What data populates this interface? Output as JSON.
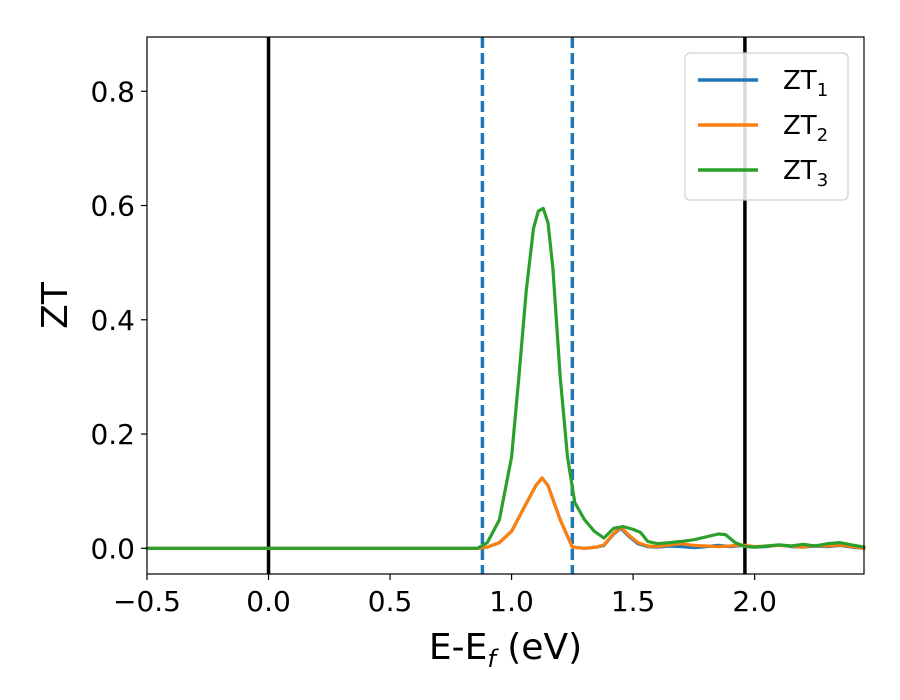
{
  "chart_data": {
    "type": "line",
    "xlabel": {
      "main": "E-E",
      "sub": "f",
      "unit": " (eV)"
    },
    "ylabel": "ZT",
    "xlim": [
      -0.5,
      2.45
    ],
    "ylim": [
      -0.045,
      0.895
    ],
    "xticks": [
      {
        "value": -0.5,
        "label": "−0.5"
      },
      {
        "value": 0.0,
        "label": "0.0"
      },
      {
        "value": 0.5,
        "label": "0.5"
      },
      {
        "value": 1.0,
        "label": "1.0"
      },
      {
        "value": 1.5,
        "label": "1.5"
      },
      {
        "value": 2.0,
        "label": "2.0"
      }
    ],
    "yticks": [
      {
        "value": 0.0,
        "label": "0.0"
      },
      {
        "value": 0.2,
        "label": "0.2"
      },
      {
        "value": 0.4,
        "label": "0.4"
      },
      {
        "value": 0.6,
        "label": "0.6"
      },
      {
        "value": 0.8,
        "label": "0.8"
      }
    ],
    "grid": false,
    "legend_position": "top-right",
    "vlines": [
      {
        "x": 0.0,
        "style": "solid",
        "color": "#000000"
      },
      {
        "x": 1.96,
        "style": "solid",
        "color": "#000000"
      },
      {
        "x": 0.88,
        "style": "dashed",
        "color": "#1f77b4"
      },
      {
        "x": 1.25,
        "style": "dashed",
        "color": "#1f77b4"
      }
    ],
    "series": [
      {
        "name": "ZT",
        "sub": "1",
        "color": "#1f77b4",
        "x": [
          -0.5,
          0.86,
          0.9,
          0.95,
          1.0,
          1.05,
          1.1,
          1.125,
          1.15,
          1.2,
          1.25,
          1.3,
          1.35,
          1.38,
          1.42,
          1.45,
          1.48,
          1.52,
          1.56,
          1.6,
          1.65,
          1.7,
          1.75,
          1.8,
          1.85,
          1.9,
          1.95,
          2.0,
          2.05,
          2.1,
          2.15,
          2.2,
          2.25,
          2.3,
          2.35,
          2.4,
          2.45
        ],
        "y": [
          0.0,
          0.0,
          0.002,
          0.01,
          0.03,
          0.07,
          0.11,
          0.123,
          0.11,
          0.05,
          0.002,
          0.0,
          0.002,
          0.005,
          0.025,
          0.035,
          0.022,
          0.008,
          0.003,
          0.002,
          0.004,
          0.003,
          0.001,
          0.003,
          0.005,
          0.003,
          0.005,
          0.002,
          0.003,
          0.006,
          0.003,
          0.002,
          0.004,
          0.003,
          0.005,
          0.002,
          0.0
        ]
      },
      {
        "name": "ZT",
        "sub": "2",
        "color": "#ff7f0e",
        "x": [
          -0.5,
          0.86,
          0.9,
          0.95,
          1.0,
          1.05,
          1.1,
          1.125,
          1.15,
          1.2,
          1.25,
          1.3,
          1.35,
          1.38,
          1.42,
          1.45,
          1.48,
          1.52,
          1.56,
          1.6,
          1.65,
          1.7,
          1.75,
          1.8,
          1.85,
          1.9,
          1.95,
          2.0,
          2.05,
          2.1,
          2.15,
          2.2,
          2.25,
          2.3,
          2.35,
          2.4,
          2.45
        ],
        "y": [
          0.0,
          0.0,
          0.002,
          0.01,
          0.03,
          0.07,
          0.11,
          0.123,
          0.11,
          0.05,
          0.002,
          0.0,
          0.002,
          0.006,
          0.026,
          0.037,
          0.024,
          0.01,
          0.004,
          0.003,
          0.006,
          0.008,
          0.005,
          0.004,
          0.003,
          0.004,
          0.006,
          0.003,
          0.004,
          0.005,
          0.004,
          0.002,
          0.005,
          0.004,
          0.006,
          0.003,
          0.0
        ]
      },
      {
        "name": "ZT",
        "sub": "3",
        "color": "#2ca02c",
        "x": [
          -0.5,
          0.86,
          0.9,
          0.95,
          1.0,
          1.03,
          1.06,
          1.09,
          1.11,
          1.13,
          1.15,
          1.17,
          1.2,
          1.23,
          1.26,
          1.3,
          1.34,
          1.38,
          1.42,
          1.46,
          1.5,
          1.53,
          1.56,
          1.6,
          1.65,
          1.7,
          1.75,
          1.8,
          1.85,
          1.88,
          1.92,
          1.96,
          2.0,
          2.05,
          2.1,
          2.15,
          2.2,
          2.25,
          2.3,
          2.35,
          2.4,
          2.45
        ],
        "y": [
          0.0,
          0.0,
          0.01,
          0.05,
          0.16,
          0.3,
          0.45,
          0.56,
          0.59,
          0.595,
          0.57,
          0.49,
          0.3,
          0.16,
          0.08,
          0.05,
          0.03,
          0.018,
          0.035,
          0.038,
          0.033,
          0.028,
          0.012,
          0.008,
          0.01,
          0.012,
          0.015,
          0.02,
          0.025,
          0.024,
          0.01,
          0.003,
          0.002,
          0.004,
          0.006,
          0.004,
          0.007,
          0.004,
          0.008,
          0.01,
          0.006,
          0.002
        ]
      }
    ]
  }
}
